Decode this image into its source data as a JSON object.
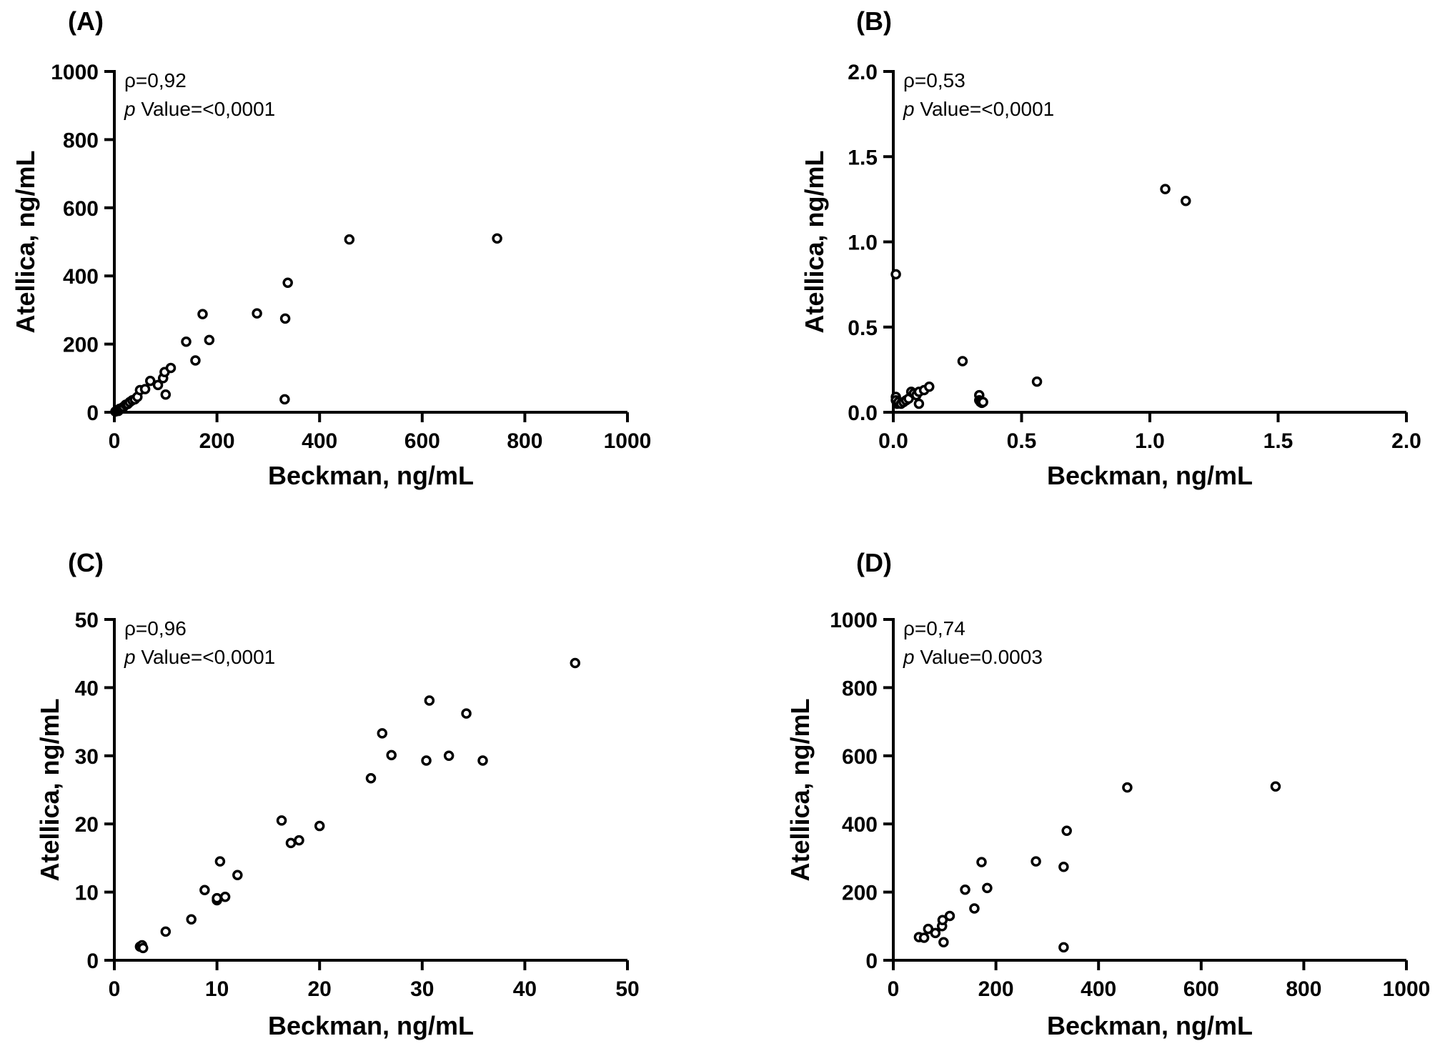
{
  "figure": {
    "description_free": true
  },
  "chart_data": [
    {
      "type": "scatter",
      "panel_label": "(A)",
      "xlabel": "Beckman, ng/mL",
      "ylabel": "Atellica, ng/mL",
      "xlim": [
        0,
        1000
      ],
      "ylim": [
        0,
        1000
      ],
      "xticks": [
        0,
        200,
        400,
        600,
        800,
        1000
      ],
      "yticks": [
        0,
        200,
        400,
        600,
        800,
        1000
      ],
      "xtick_labels": [
        "0",
        "200",
        "400",
        "600",
        "800",
        "1000"
      ],
      "ytick_labels": [
        "0",
        "200",
        "400",
        "600",
        "800",
        "1000"
      ],
      "rho_text": "ρ=0,92",
      "p_symbol": "p",
      "p_text": " Value=<0,0001",
      "points": [
        [
          2,
          2
        ],
        [
          5,
          6
        ],
        [
          8,
          4
        ],
        [
          10,
          10
        ],
        [
          14,
          12
        ],
        [
          18,
          16
        ],
        [
          22,
          22
        ],
        [
          26,
          24
        ],
        [
          30,
          30
        ],
        [
          35,
          35
        ],
        [
          40,
          38
        ],
        [
          45,
          45
        ],
        [
          50,
          65
        ],
        [
          60,
          68
        ],
        [
          70,
          92
        ],
        [
          85,
          80
        ],
        [
          95,
          100
        ],
        [
          98,
          118
        ],
        [
          100,
          52
        ],
        [
          110,
          130
        ],
        [
          140,
          207
        ],
        [
          158,
          152
        ],
        [
          172,
          288
        ],
        [
          185,
          212
        ],
        [
          278,
          290
        ],
        [
          333,
          275
        ],
        [
          338,
          380
        ],
        [
          332,
          38
        ],
        [
          458,
          507
        ],
        [
          746,
          510
        ]
      ]
    },
    {
      "type": "scatter",
      "panel_label": "(B)",
      "xlabel": "Beckman, ng/mL",
      "ylabel": "Atellica, ng/mL",
      "xlim": [
        0,
        2.0
      ],
      "ylim": [
        0,
        2.0
      ],
      "xticks": [
        0,
        0.5,
        1.0,
        1.5,
        2.0
      ],
      "yticks": [
        0,
        0.5,
        1.0,
        1.5,
        2.0
      ],
      "xtick_labels": [
        "0.0",
        "0.5",
        "1.0",
        "1.5",
        "2.0"
      ],
      "ytick_labels": [
        "0.0",
        "0.5",
        "1.0",
        "1.5",
        "2.0"
      ],
      "rho_text": "ρ=0,53",
      "p_symbol": "p",
      "p_text": " Value=<0,0001",
      "points": [
        [
          0.01,
          0.81
        ],
        [
          0.01,
          0.09
        ],
        [
          0.01,
          0.07
        ],
        [
          0.015,
          0.05
        ],
        [
          0.02,
          0.06
        ],
        [
          0.03,
          0.05
        ],
        [
          0.04,
          0.06
        ],
        [
          0.05,
          0.07
        ],
        [
          0.06,
          0.08
        ],
        [
          0.07,
          0.12
        ],
        [
          0.08,
          0.11
        ],
        [
          0.09,
          0.1
        ],
        [
          0.1,
          0.12
        ],
        [
          0.1,
          0.05
        ],
        [
          0.12,
          0.13
        ],
        [
          0.14,
          0.15
        ],
        [
          0.27,
          0.3
        ],
        [
          0.335,
          0.1
        ],
        [
          0.335,
          0.07
        ],
        [
          0.34,
          0.06
        ],
        [
          0.345,
          0.055
        ],
        [
          0.35,
          0.06
        ],
        [
          0.56,
          0.18
        ],
        [
          1.06,
          1.31
        ],
        [
          1.14,
          1.24
        ]
      ]
    },
    {
      "type": "scatter",
      "panel_label": "(C)",
      "xlabel": "Beckman, ng/mL",
      "ylabel": "Atellica, ng/mL",
      "xlim": [
        0,
        50
      ],
      "ylim": [
        0,
        50
      ],
      "xticks": [
        0,
        10,
        20,
        30,
        40,
        50
      ],
      "yticks": [
        0,
        10,
        20,
        30,
        40,
        50
      ],
      "xtick_labels": [
        "0",
        "10",
        "20",
        "30",
        "40",
        "50"
      ],
      "ytick_labels": [
        "0",
        "10",
        "20",
        "30",
        "40",
        "50"
      ],
      "rho_text": "ρ=0,96",
      "p_symbol": "p",
      "p_text": " Value=<0,0001",
      "points": [
        [
          2.5,
          2.0
        ],
        [
          2.7,
          2.2
        ],
        [
          2.8,
          1.8
        ],
        [
          5.0,
          4.2
        ],
        [
          7.5,
          6.0
        ],
        [
          8.8,
          10.3
        ],
        [
          10.0,
          8.8
        ],
        [
          10.0,
          9.1
        ],
        [
          10.3,
          14.5
        ],
        [
          10.8,
          9.3
        ],
        [
          12.0,
          12.5
        ],
        [
          16.3,
          20.5
        ],
        [
          17.2,
          17.2
        ],
        [
          18.0,
          17.6
        ],
        [
          20.0,
          19.7
        ],
        [
          25.0,
          26.7
        ],
        [
          26.1,
          33.3
        ],
        [
          27.0,
          30.1
        ],
        [
          30.4,
          29.3
        ],
        [
          30.7,
          38.1
        ],
        [
          32.6,
          30.0
        ],
        [
          34.3,
          36.2
        ],
        [
          35.9,
          29.3
        ],
        [
          44.9,
          43.6
        ]
      ]
    },
    {
      "type": "scatter",
      "panel_label": "(D)",
      "xlabel": "Beckman, ng/mL",
      "ylabel": "Atellica, ng/mL",
      "xlim": [
        0,
        1000
      ],
      "ylim": [
        0,
        1000
      ],
      "xticks": [
        0,
        200,
        400,
        600,
        800,
        1000
      ],
      "yticks": [
        0,
        200,
        400,
        600,
        800,
        1000
      ],
      "xtick_labels": [
        "0",
        "200",
        "400",
        "600",
        "800",
        "1000"
      ],
      "ytick_labels": [
        "0",
        "200",
        "400",
        "600",
        "800",
        "1000"
      ],
      "rho_text": "ρ=0,74",
      "p_symbol": "p",
      "p_text": " Value=0.0003",
      "points": [
        [
          50,
          68
        ],
        [
          60,
          66
        ],
        [
          68,
          92
        ],
        [
          82,
          80
        ],
        [
          95,
          100
        ],
        [
          96,
          118
        ],
        [
          98,
          53
        ],
        [
          110,
          130
        ],
        [
          140,
          207
        ],
        [
          158,
          152
        ],
        [
          172,
          288
        ],
        [
          183,
          212
        ],
        [
          278,
          290
        ],
        [
          332,
          274
        ],
        [
          338,
          380
        ],
        [
          332,
          38
        ],
        [
          456,
          507
        ],
        [
          745,
          510
        ]
      ]
    }
  ]
}
